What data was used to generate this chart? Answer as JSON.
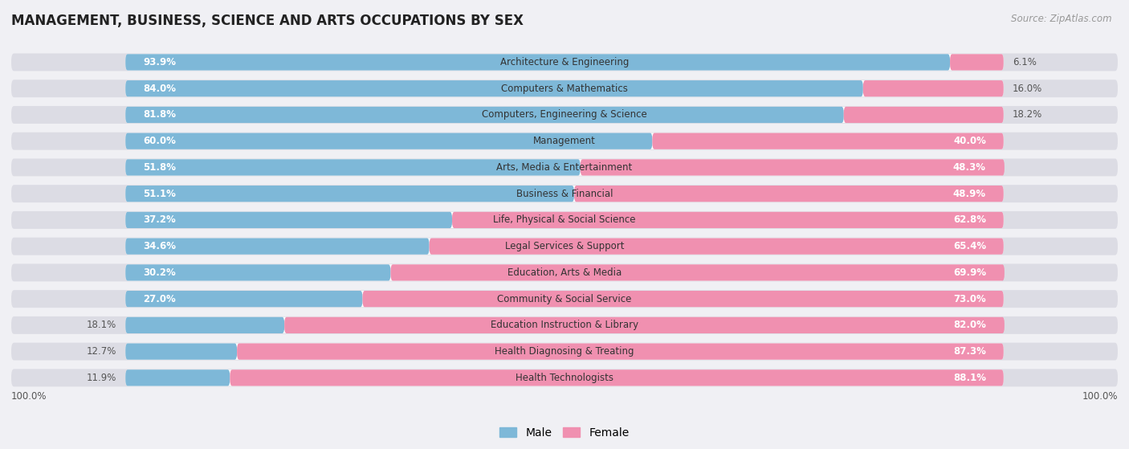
{
  "title": "MANAGEMENT, BUSINESS, SCIENCE AND ARTS OCCUPATIONS BY SEX",
  "source": "Source: ZipAtlas.com",
  "categories": [
    "Architecture & Engineering",
    "Computers & Mathematics",
    "Computers, Engineering & Science",
    "Management",
    "Arts, Media & Entertainment",
    "Business & Financial",
    "Life, Physical & Social Science",
    "Legal Services & Support",
    "Education, Arts & Media",
    "Community & Social Service",
    "Education Instruction & Library",
    "Health Diagnosing & Treating",
    "Health Technologists"
  ],
  "male_pct": [
    93.9,
    84.0,
    81.8,
    60.0,
    51.8,
    51.1,
    37.2,
    34.6,
    30.2,
    27.0,
    18.1,
    12.7,
    11.9
  ],
  "female_pct": [
    6.1,
    16.0,
    18.2,
    40.0,
    48.3,
    48.9,
    62.8,
    65.4,
    69.9,
    73.0,
    82.0,
    87.3,
    88.1
  ],
  "male_color": "#7eb8d8",
  "female_color": "#f090b0",
  "row_bg_color": "#e8e8ec",
  "bar_inner_bg": "#ffffff",
  "bg_color": "#f0f0f4",
  "title_fontsize": 12,
  "label_fontsize": 8.5,
  "pct_fontsize": 8.5,
  "legend_fontsize": 10,
  "source_fontsize": 8.5
}
